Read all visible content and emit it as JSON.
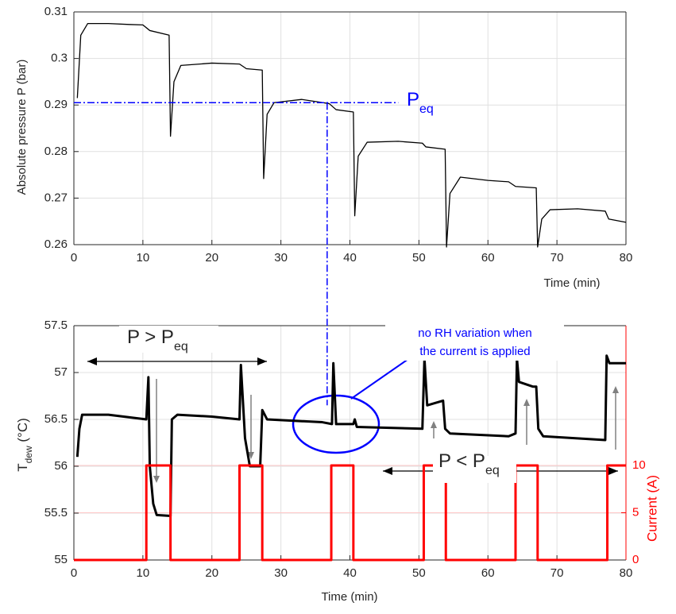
{
  "chart_data": [
    {
      "type": "line",
      "ylabel": "Absolute pressure P (bar)",
      "xlabel": "Time (min)",
      "series": [
        {
          "color": "#000000",
          "x": [
            0.5,
            1,
            2,
            5,
            8,
            10,
            11,
            13.8,
            14.0,
            14.5,
            15.5,
            20,
            24,
            25,
            27.3,
            27.5,
            28,
            29,
            33,
            37,
            38,
            40.5,
            40.7,
            41.2,
            42.5,
            47,
            50.5,
            51,
            53.8,
            54,
            54.5,
            56,
            60,
            63,
            64,
            67,
            67.2,
            67.8,
            69,
            73,
            77,
            77.5,
            80
          ],
          "values": [
            0.2915,
            0.305,
            0.3075,
            0.3075,
            0.3073,
            0.3072,
            0.306,
            0.305,
            0.2833,
            0.295,
            0.2985,
            0.299,
            0.2988,
            0.2978,
            0.2975,
            0.2742,
            0.288,
            0.2905,
            0.2912,
            0.2903,
            0.289,
            0.2885,
            0.2662,
            0.279,
            0.282,
            0.2822,
            0.2818,
            0.281,
            0.2805,
            0.2595,
            0.271,
            0.2745,
            0.2738,
            0.2735,
            0.2725,
            0.2722,
            0.2595,
            0.2655,
            0.2675,
            0.2677,
            0.2672,
            0.2655,
            0.2648
          ]
        }
      ],
      "xlim": [
        0,
        80
      ],
      "ylim": [
        0.26,
        0.31
      ],
      "xticks": [
        0,
        10,
        20,
        30,
        40,
        50,
        60,
        70,
        80
      ],
      "yticks": [
        0.26,
        0.27,
        0.28,
        0.29,
        0.3,
        0.31
      ],
      "grid": true,
      "annotations": [
        {
          "text": "P",
          "subscript": "eq",
          "color": "#0000ff"
        }
      ],
      "reference_line": {
        "value": 0.2905,
        "x_end": 47,
        "x_drop": 36.7,
        "color": "#0000ff"
      }
    },
    {
      "type": "line",
      "ylabel": {
        "text": "T",
        "subscript": "dew",
        "suffix": " (°C)"
      },
      "xlabel": "Time (min)",
      "y2label": "Current (A)",
      "y2color": "#ff0000",
      "series": [
        {
          "color": "#000000",
          "x": [
            0.5,
            0.8,
            1.2,
            5,
            10.5,
            10.8,
            11,
            11.5,
            12,
            14,
            14.2,
            15,
            20,
            24,
            24.2,
            24.8,
            25.5,
            27,
            27.3,
            28,
            36,
            37.4,
            37.6,
            38,
            40.5,
            40.7,
            41,
            50.5,
            50.8,
            51.2,
            53.5,
            53.8,
            54.5,
            63,
            64,
            64.2,
            64.5,
            66.5,
            67,
            67.3,
            68,
            77,
            77.2,
            77.6,
            80
          ],
          "values": [
            56.1,
            56.4,
            56.55,
            56.55,
            56.5,
            56.95,
            56.0,
            55.6,
            55.48,
            55.47,
            56.5,
            56.55,
            56.53,
            56.5,
            57.08,
            56.3,
            56.0,
            56.0,
            56.6,
            56.5,
            56.47,
            56.45,
            57.1,
            56.45,
            56.45,
            56.5,
            56.42,
            56.4,
            57.15,
            56.65,
            56.7,
            56.4,
            56.35,
            56.32,
            56.35,
            57.15,
            56.9,
            56.85,
            56.85,
            56.4,
            56.32,
            56.28,
            57.18,
            57.1,
            57.1
          ]
        },
        {
          "color": "#ff0000",
          "axis": "y2",
          "drawstyle": "steps-post",
          "x": [
            0,
            10.5,
            14,
            24,
            27.3,
            37.3,
            40.5,
            50.7,
            53.9,
            64,
            67.2,
            77.3,
            80
          ],
          "values": [
            0,
            10,
            0,
            10,
            0,
            10,
            0,
            10,
            0,
            10,
            0,
            10,
            10
          ]
        }
      ],
      "xlim": [
        0,
        80
      ],
      "ylim": [
        55,
        57.5
      ],
      "y2lim": [
        0,
        24.8
      ],
      "xticks": [
        0,
        10,
        20,
        30,
        40,
        50,
        60,
        70,
        80
      ],
      "yticks": [
        55,
        55.5,
        56,
        56.5,
        57,
        57.5
      ],
      "y2ticks": [
        0,
        5,
        10
      ],
      "grid": true,
      "y2grid": true,
      "reference_drop_to": 56.65,
      "annotations": [
        {
          "text": "P > P",
          "subscript": "eq"
        },
        {
          "text": "P < P",
          "subscript": "eq"
        },
        {
          "text": "no RH variation when",
          "color": "#0000ff"
        },
        {
          "text": "the current is applied",
          "color": "#0000ff"
        }
      ]
    }
  ]
}
